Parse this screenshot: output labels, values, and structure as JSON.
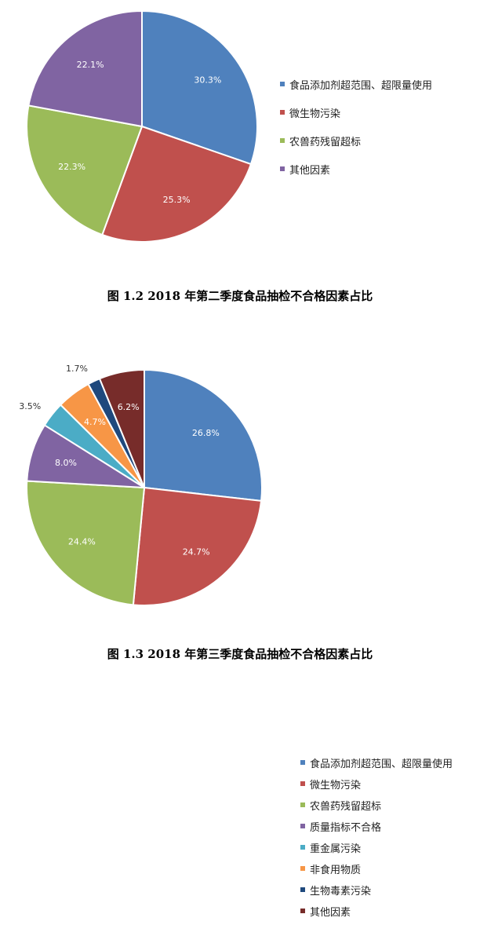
{
  "colors": {
    "blue": "#4F81BD",
    "red": "#C0504D",
    "green": "#9BBB59",
    "purple": "#8064A2",
    "teal": "#4BACC6",
    "orange": "#F79646",
    "navy": "#1F497D",
    "maroon": "#772C2A"
  },
  "chart_data": [
    {
      "type": "pie",
      "title": "图 1.2 2018 年第二季度食品抽检不合格因素占比",
      "legend_position": "right",
      "categories": [
        "食品添加剂超范围、超限量使用",
        "微生物污染",
        "农兽药残留超标",
        "其他因素"
      ],
      "values": [
        30.3,
        25.3,
        22.3,
        22.1
      ],
      "labels": [
        "30.3%",
        "25.3%",
        "22.3%",
        "22.1%"
      ],
      "colors": [
        "#4F81BD",
        "#C0504D",
        "#9BBB59",
        "#8064A2"
      ]
    },
    {
      "type": "pie",
      "title": "图 1.3 2018 年第三季度食品抽检不合格因素占比",
      "legend_position": "right",
      "categories": [
        "食品添加剂超范围、超限量使用",
        "微生物污染",
        "农兽药残留超标",
        "质量指标不合格",
        "重金属污染",
        "非食用物质",
        "生物毒素污染",
        "其他因素"
      ],
      "values": [
        26.8,
        24.7,
        24.4,
        8.0,
        3.5,
        4.7,
        1.7,
        6.2
      ],
      "labels": [
        "26.8%",
        "24.7%",
        "24.4%",
        "8.0%",
        "3.5%",
        "4.7%",
        "1.7%",
        "6.2%"
      ],
      "colors": [
        "#4F81BD",
        "#C0504D",
        "#9BBB59",
        "#8064A2",
        "#4BACC6",
        "#F79646",
        "#1F497D",
        "#772C2A"
      ]
    }
  ]
}
